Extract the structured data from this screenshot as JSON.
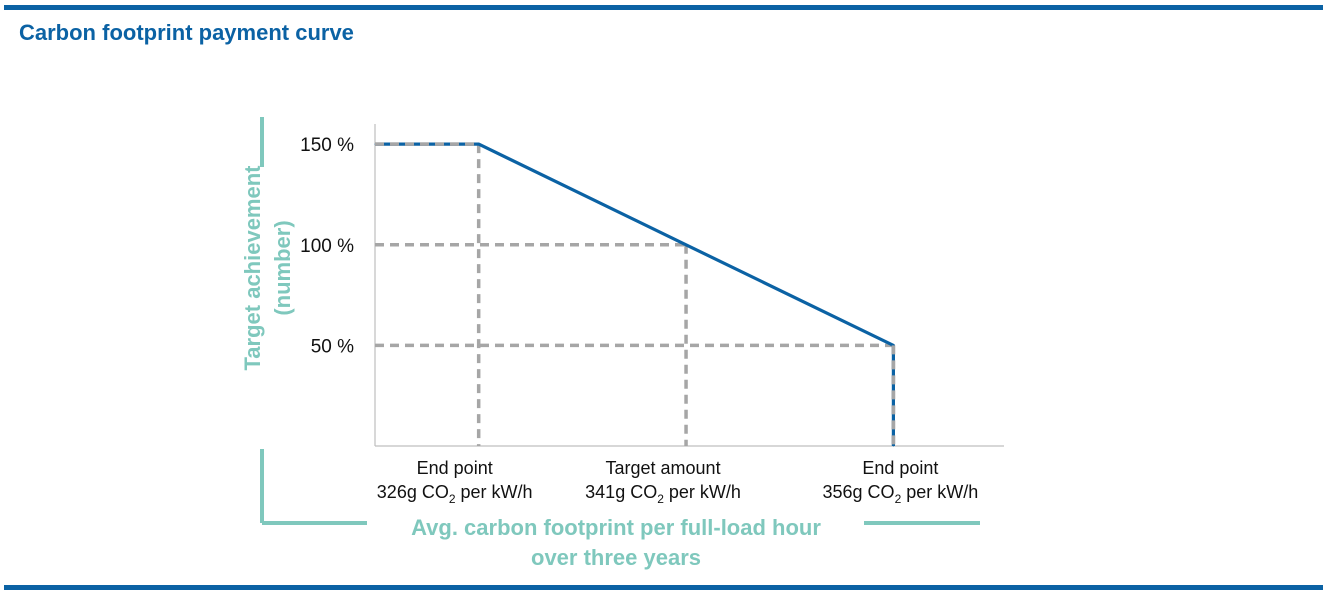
{
  "header": {
    "title": "Carbon footprint payment curve"
  },
  "colors": {
    "brand_blue": "#0b62a4",
    "accent_teal": "#7fc8bd",
    "guide_gray": "#a6a6a6",
    "axis_gray": "#bfbfbf"
  },
  "chart_data": {
    "type": "line",
    "title": "Carbon footprint payment curve",
    "ylabel_lines": [
      "Target achievement",
      "(number)"
    ],
    "xlabel_lines": [
      "Avg. carbon footprint per full-load hour",
      "over three years"
    ],
    "y_ticks": [
      {
        "value": 150,
        "label": "150 %"
      },
      {
        "value": 100,
        "label": "100 %"
      },
      {
        "value": 50,
        "label": "50 %"
      }
    ],
    "x_ticks": [
      {
        "value": 326,
        "line1": "End point",
        "line2_prefix": "326g CO",
        "line2_sub": "2",
        "line2_suffix": " per kW/h"
      },
      {
        "value": 341,
        "line1": "Target amount",
        "line2_prefix": "341g CO",
        "line2_sub": "2",
        "line2_suffix": " per kW/h"
      },
      {
        "value": 356,
        "line1": "End point",
        "line2_prefix": "356g CO",
        "line2_sub": "2",
        "line2_suffix": " per kW/h"
      }
    ],
    "xlim": [
      318.5,
      364
    ],
    "ylim": [
      0,
      160
    ],
    "series": [
      {
        "values": [
          {
            "x": 318.5,
            "y": 150
          },
          {
            "x": 326,
            "y": 150
          },
          {
            "x": 341,
            "y": 100
          },
          {
            "x": 356,
            "y": 50
          },
          {
            "x": 356,
            "y": 0
          }
        ]
      }
    ],
    "guides": [
      {
        "kind": "horizontal",
        "y": 150,
        "x_to": 326
      },
      {
        "kind": "horizontal",
        "y": 100,
        "x_to": 341
      },
      {
        "kind": "horizontal",
        "y": 50,
        "x_to": 356
      },
      {
        "kind": "vertical",
        "x": 326,
        "y_to": 150
      },
      {
        "kind": "vertical",
        "x": 341,
        "y_to": 100
      },
      {
        "kind": "vertical",
        "x": 356,
        "y_to": 50
      }
    ],
    "grid": false,
    "legend": "none"
  }
}
